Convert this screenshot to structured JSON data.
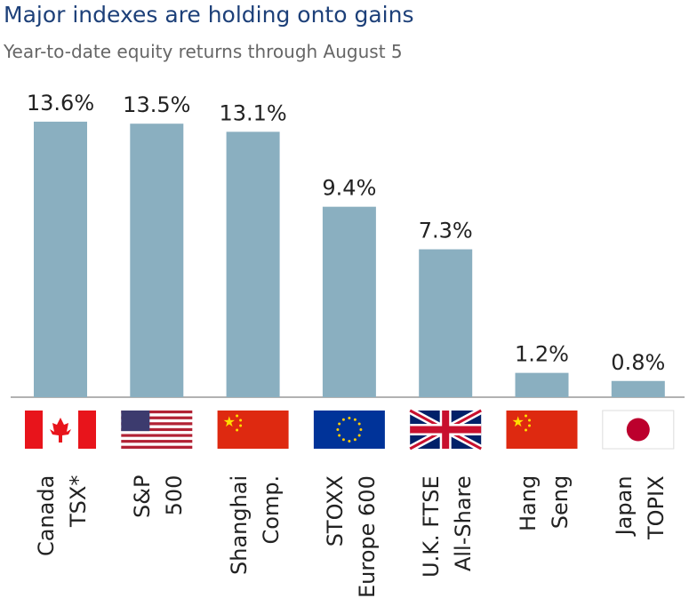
{
  "title": "Major indexes are holding onto gains",
  "subtitle": "Year-to-date equity returns through August 5",
  "chart_data": {
    "type": "bar",
    "title": "Major indexes are holding onto gains",
    "subtitle": "Year-to-date equity returns through August 5",
    "categories": [
      [
        "Canada",
        "TSX*"
      ],
      [
        "S&P",
        "500"
      ],
      [
        "Shanghai",
        "Comp."
      ],
      [
        "STOXX",
        "Europe 600"
      ],
      [
        "U.K. FTSE",
        "All-Share"
      ],
      [
        "Hang",
        "Seng"
      ],
      [
        "Japan",
        "TOPIX"
      ]
    ],
    "flags": [
      "canada",
      "usa",
      "china",
      "eu",
      "uk",
      "china",
      "japan"
    ],
    "values": [
      13.6,
      13.5,
      13.1,
      9.4,
      7.3,
      1.2,
      0.8
    ],
    "labels": [
      "13.6%",
      "13.5%",
      "13.1%",
      "9.4%",
      "7.3%",
      "1.2%",
      "0.8%"
    ],
    "ylim": [
      0,
      14
    ],
    "grid": false,
    "colors": {
      "bar": "#8aafc0",
      "title": "#1d4079"
    }
  }
}
